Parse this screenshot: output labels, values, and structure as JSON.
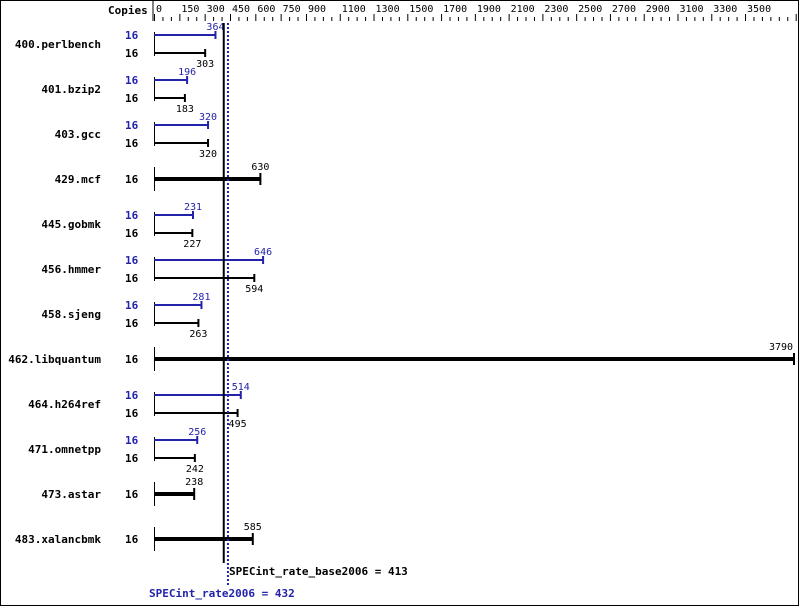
{
  "chart_data": {
    "type": "bar",
    "orientation": "horizontal",
    "xlabel": "Copies",
    "xlim": [
      0,
      3800
    ],
    "xticks": [
      0,
      150,
      300,
      450,
      600,
      750,
      900,
      1100,
      1300,
      1500,
      1700,
      1900,
      2100,
      2300,
      2500,
      2700,
      2900,
      3100,
      3300,
      3500,
      3800
    ],
    "categories": [
      "400.perlbench",
      "401.bzip2",
      "403.gcc",
      "429.mcf",
      "445.gobmk",
      "456.hmmer",
      "458.sjeng",
      "462.libquantum",
      "464.h264ref",
      "471.omnetpp",
      "473.astar",
      "483.xalancbmk"
    ],
    "series": [
      {
        "name": "SPECint_rate2006",
        "copies": [
          16,
          16,
          16,
          null,
          16,
          16,
          16,
          null,
          16,
          16,
          null,
          null
        ],
        "values": [
          364,
          196,
          320,
          null,
          231,
          646,
          281,
          null,
          514,
          256,
          null,
          null
        ]
      },
      {
        "name": "SPECint_rate_base2006",
        "copies": [
          16,
          16,
          16,
          16,
          16,
          16,
          16,
          16,
          16,
          16,
          16,
          16
        ],
        "values": [
          303,
          183,
          320,
          630,
          227,
          594,
          263,
          3790,
          495,
          242,
          238,
          585
        ]
      }
    ],
    "reference_lines": [
      {
        "label": "SPECint_rate_base2006 = 413",
        "value": 413
      },
      {
        "label": "SPECint_rate2006 = 432",
        "value": 432
      }
    ],
    "colors": {
      "peak": "#2222aa",
      "base": "#000000"
    }
  }
}
